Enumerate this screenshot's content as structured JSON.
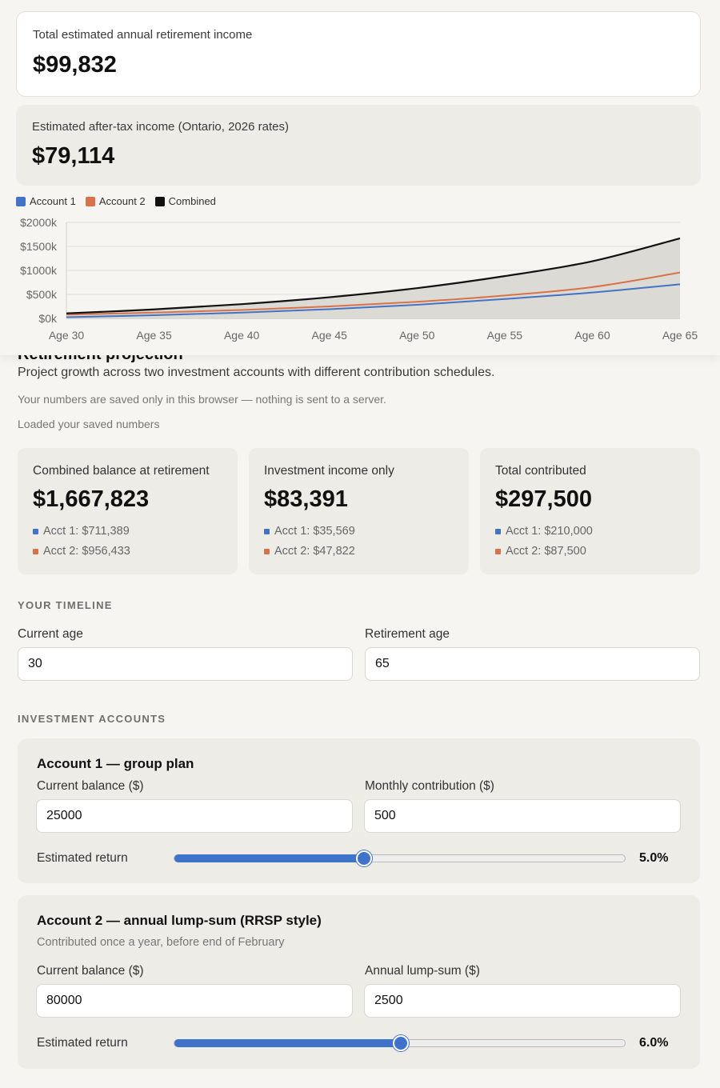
{
  "summary": {
    "total_label": "Total estimated annual retirement income",
    "total_value": "$99,832",
    "aftertax_label": "Estimated after-tax income (Ontario, 2026 rates)",
    "aftertax_value": "$79,114"
  },
  "chart_data": {
    "type": "line",
    "x": [
      30,
      35,
      40,
      45,
      50,
      55,
      60,
      65
    ],
    "x_tick_labels": [
      "Age 30",
      "Age 35",
      "Age 40",
      "Age 45",
      "Age 50",
      "Age 55",
      "Age 60",
      "Age 65"
    ],
    "y_tick_labels": [
      "$0k",
      "$500k",
      "$1000k",
      "$1500k",
      "$2000k"
    ],
    "ylim": [
      0,
      2000
    ],
    "legend_position": "top-left",
    "grid": true,
    "series": [
      {
        "name": "Account 1",
        "color": "#4472c4",
        "values": [
          25,
          66,
          121,
          192,
          284,
          404,
          539,
          711
        ]
      },
      {
        "name": "Account 2",
        "color": "#d8724a",
        "values": [
          80,
          121,
          176,
          249,
          346,
          477,
          652,
          956
        ]
      },
      {
        "name": "Combined",
        "color": "#111111",
        "values": [
          105,
          187,
          297,
          441,
          630,
          881,
          1191,
          1668
        ]
      }
    ]
  },
  "page": {
    "heading": "Retirement projection",
    "description": "Project growth across two investment accounts with different contribution schedules.",
    "privacy_note": "Your numbers are saved only in this browser — nothing is sent to a server.",
    "load_note": "Loaded your saved numbers"
  },
  "stats": [
    {
      "label": "Combined balance at retirement",
      "value": "$1,667,823",
      "acct1": "Acct 1: $711,389",
      "acct2": "Acct 2: $956,433"
    },
    {
      "label": "Investment income only",
      "value": "$83,391",
      "acct1": "Acct 1: $35,569",
      "acct2": "Acct 2: $47,822"
    },
    {
      "label": "Total contributed",
      "value": "$297,500",
      "acct1": "Acct 1: $210,000",
      "acct2": "Acct 2: $87,500"
    }
  ],
  "timeline": {
    "section_title": "YOUR TIMELINE",
    "current_age_label": "Current age",
    "current_age_value": "30",
    "retirement_age_label": "Retirement age",
    "retirement_age_value": "65"
  },
  "accounts": {
    "section_title": "INVESTMENT ACCOUNTS",
    "a1": {
      "title": "Account 1 — group plan",
      "balance_label": "Current balance ($)",
      "balance_value": "25000",
      "contrib_label": "Monthly contribution ($)",
      "contrib_value": "500",
      "return_label": "Estimated return",
      "return_display": "5.0%",
      "return_fraction": 0.42
    },
    "a2": {
      "title": "Account 2 — annual lump-sum (RRSP style)",
      "subtitle": "Contributed once a year, before end of February",
      "balance_label": "Current balance ($)",
      "balance_value": "80000",
      "contrib_label": "Annual lump-sum ($)",
      "contrib_value": "2500",
      "return_label": "Estimated return",
      "return_display": "6.0%",
      "return_fraction": 0.5
    }
  },
  "colors": {
    "accent": "#3f72c9",
    "account1": "#4472c4",
    "account2": "#d8724a",
    "combined": "#111111"
  }
}
